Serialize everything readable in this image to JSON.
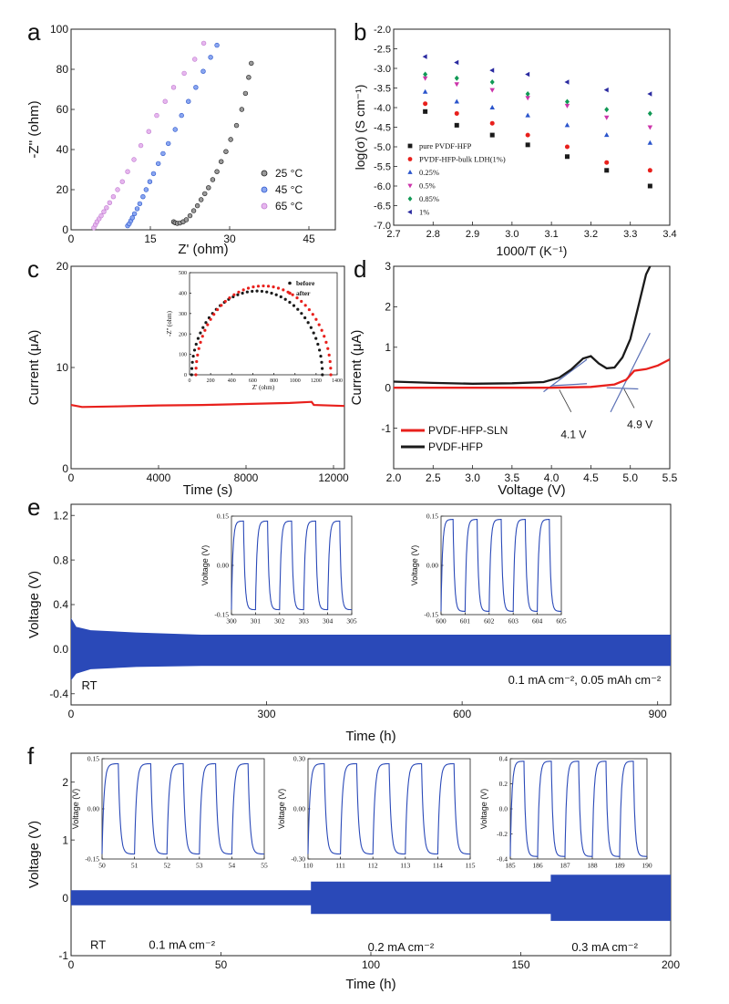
{
  "colors": {
    "black": "#1a1a1a",
    "blue": "#2b55cc",
    "red": "#e8201c",
    "green": "#119955",
    "purple": "#2a2aa0",
    "lilac": "#c07ad0",
    "magenta": "#cc33aa",
    "fill_blue": "#2a49b8",
    "guide": "#5a6fb5"
  },
  "chart_data": [
    {
      "id": "a",
      "type": "scatter",
      "panel_letter": "a",
      "xlabel": "Z' (ohm)",
      "ylabel": "-Z'' (ohm)",
      "xlim": [
        0,
        50
      ],
      "ylim": [
        0,
        100
      ],
      "xticks": [
        0,
        15,
        30,
        45
      ],
      "yticks": [
        0,
        20,
        40,
        60,
        80,
        100
      ],
      "series": [
        {
          "name": "25 °C",
          "color": "#1a1a1a",
          "fill": "#9a9a9a",
          "points": [
            [
              19.4,
              4
            ],
            [
              19.7,
              3.5
            ],
            [
              20.1,
              3.2
            ],
            [
              20.6,
              3.4
            ],
            [
              21.2,
              4
            ],
            [
              21.8,
              5
            ],
            [
              22.5,
              7
            ],
            [
              23.2,
              9.5
            ],
            [
              23.9,
              12
            ],
            [
              24.6,
              15
            ],
            [
              25.3,
              18
            ],
            [
              26,
              21
            ],
            [
              26.8,
              25
            ],
            [
              27.6,
              29
            ],
            [
              28.4,
              34
            ],
            [
              29.3,
              39
            ],
            [
              30.2,
              45
            ],
            [
              31.3,
              52
            ],
            [
              32.3,
              60
            ],
            [
              33,
              68
            ],
            [
              33.6,
              76
            ],
            [
              34.1,
              83
            ]
          ]
        },
        {
          "name": "45 °C",
          "color": "#2b55cc",
          "fill": "#8aa6f0",
          "points": [
            [
              10.7,
              2
            ],
            [
              11,
              3
            ],
            [
              11.3,
              4.5
            ],
            [
              11.6,
              6
            ],
            [
              12,
              8
            ],
            [
              12.5,
              10.5
            ],
            [
              13,
              13
            ],
            [
              13.6,
              16.5
            ],
            [
              14.2,
              20
            ],
            [
              14.9,
              24
            ],
            [
              15.6,
              28
            ],
            [
              16.5,
              33
            ],
            [
              17.4,
              38
            ],
            [
              18.4,
              43
            ],
            [
              19.7,
              50
            ],
            [
              20.9,
              57
            ],
            [
              22.2,
              64
            ],
            [
              23.6,
              71
            ],
            [
              25,
              79
            ],
            [
              26.4,
              86
            ],
            [
              27.6,
              92
            ]
          ]
        },
        {
          "name": "65 °C",
          "color": "#c07ad0",
          "fill": "#e6b7ee",
          "points": [
            [
              4.3,
              1
            ],
            [
              4.6,
              2.5
            ],
            [
              4.9,
              4
            ],
            [
              5.3,
              5.5
            ],
            [
              5.7,
              7
            ],
            [
              6.2,
              9
            ],
            [
              6.7,
              11
            ],
            [
              7.3,
              13.5
            ],
            [
              8,
              16.5
            ],
            [
              8.8,
              20
            ],
            [
              9.7,
              24
            ],
            [
              10.7,
              29
            ],
            [
              11.9,
              35
            ],
            [
              13.2,
              42
            ],
            [
              14.7,
              49
            ],
            [
              16.2,
              57
            ],
            [
              17.8,
              64
            ],
            [
              19.4,
              71
            ],
            [
              21.4,
              78
            ],
            [
              23.4,
              85
            ],
            [
              25.1,
              93
            ]
          ]
        }
      ]
    },
    {
      "id": "b",
      "type": "scatter",
      "panel_letter": "b",
      "xlabel": "1000/T (K⁻¹)",
      "ylabel": "log(σ) (S cm⁻¹)",
      "xlim": [
        2.7,
        3.4
      ],
      "ylim": [
        -7.0,
        -2.0
      ],
      "xticks": [
        2.7,
        2.8,
        2.9,
        3.0,
        3.1,
        3.2,
        3.3,
        3.4
      ],
      "yticks": [
        -2.0,
        -2.5,
        -3.0,
        -3.5,
        -4.0,
        -4.5,
        -5.0,
        -5.5,
        -6.0,
        -6.5,
        -7.0
      ],
      "x": [
        2.78,
        2.86,
        2.95,
        3.04,
        3.14,
        3.24,
        3.35
      ],
      "series": [
        {
          "name": "pure PVDF-HFP",
          "color": "#1a1a1a",
          "marker": "square",
          "values": [
            -4.1,
            -4.45,
            -4.7,
            -4.95,
            -5.25,
            -5.6,
            -6.0
          ]
        },
        {
          "name": "PVDF-HFP-bulk LDH(1%)",
          "color": "#e8201c",
          "marker": "circle",
          "values": [
            -3.9,
            -4.15,
            -4.4,
            -4.7,
            -5.0,
            -5.4,
            -5.6
          ]
        },
        {
          "name": "0.25%",
          "color": "#2b55cc",
          "marker": "triangle-up",
          "values": [
            -3.6,
            -3.85,
            -4.0,
            -4.2,
            -4.45,
            -4.7,
            -4.9
          ]
        },
        {
          "name": "0.5%",
          "color": "#cc33aa",
          "marker": "triangle-down",
          "values": [
            -3.25,
            -3.4,
            -3.55,
            -3.75,
            -3.95,
            -4.25,
            -4.5
          ]
        },
        {
          "name": "0.85%",
          "color": "#119955",
          "marker": "diamond",
          "values": [
            -3.15,
            -3.25,
            -3.35,
            -3.65,
            -3.85,
            -4.05,
            -4.15
          ]
        },
        {
          "name": "1%",
          "color": "#2a2aa0",
          "marker": "triangle-left",
          "values": [
            -2.7,
            -2.85,
            -3.05,
            -3.15,
            -3.35,
            -3.55,
            -3.65
          ]
        }
      ]
    },
    {
      "id": "c",
      "type": "line",
      "panel_letter": "c",
      "xlabel": "Time (s)",
      "ylabel": "Current (μA)",
      "xlim": [
        0,
        12500
      ],
      "ylim": [
        0,
        20
      ],
      "xticks": [
        0,
        4000,
        8000,
        12000
      ],
      "yticks": [
        0,
        10,
        20
      ],
      "series": [
        {
          "name": "current",
          "color": "#e8201c",
          "x": [
            0,
            500,
            2000,
            4000,
            6000,
            8000,
            10000,
            11000,
            11100,
            12500
          ],
          "y": [
            6.3,
            6.1,
            6.15,
            6.25,
            6.3,
            6.4,
            6.5,
            6.6,
            6.3,
            6.2
          ]
        }
      ],
      "inset": {
        "type": "scatter",
        "xlabel": "Z' (ohm)",
        "ylabel": "-Z'' (ohm)",
        "xlim": [
          0,
          1400
        ],
        "ylim": [
          0,
          500
        ],
        "xticks": [
          0,
          200,
          400,
          600,
          800,
          1000,
          1200,
          1400
        ],
        "yticks": [
          0,
          100,
          200,
          300,
          400,
          500
        ],
        "series": [
          {
            "name": "before",
            "color": "#1a1a1a",
            "center": 640,
            "radius": 620,
            "peak": 410
          },
          {
            "name": "after",
            "color": "#e8201c",
            "center": 700,
            "radius": 640,
            "peak": 435
          }
        ]
      }
    },
    {
      "id": "d",
      "type": "line",
      "panel_letter": "d",
      "xlabel": "Voltage (V)",
      "ylabel": "Current (μA)",
      "xlim": [
        2.0,
        5.5
      ],
      "ylim": [
        -2,
        3
      ],
      "xticks": [
        2.0,
        2.5,
        3.0,
        3.5,
        4.0,
        4.5,
        5.0,
        5.5
      ],
      "yticks": [
        -1,
        0,
        1,
        2,
        3
      ],
      "series": [
        {
          "name": "PVDF-HFP-SLN",
          "color": "#e8201c",
          "x": [
            2.0,
            3.0,
            4.0,
            4.5,
            4.8,
            4.95,
            5.05,
            5.2,
            5.35,
            5.5
          ],
          "y": [
            0.0,
            0.0,
            0.0,
            0.02,
            0.08,
            0.2,
            0.42,
            0.46,
            0.55,
            0.7
          ]
        },
        {
          "name": "PVDF-HFP",
          "color": "#1a1a1a",
          "x": [
            2.0,
            2.5,
            3.0,
            3.5,
            3.9,
            4.1,
            4.25,
            4.4,
            4.5,
            4.6,
            4.7,
            4.8,
            4.9,
            5.0,
            5.1,
            5.2,
            5.25
          ],
          "y": [
            0.15,
            0.12,
            0.1,
            0.11,
            0.14,
            0.25,
            0.45,
            0.72,
            0.78,
            0.6,
            0.48,
            0.5,
            0.75,
            1.2,
            2.0,
            2.8,
            3.0
          ]
        }
      ],
      "annotations": [
        "4.1 V",
        "4.9 V"
      ]
    },
    {
      "id": "e",
      "type": "area",
      "panel_letter": "e",
      "xlabel": "Time (h)",
      "ylabel": "Voltage (V)",
      "xlim": [
        0,
        920
      ],
      "ylim": [
        -0.5,
        1.3
      ],
      "xticks": [
        0,
        300,
        600,
        900
      ],
      "yticks": [
        -0.4,
        0.0,
        0.4,
        0.8,
        1.2
      ],
      "envelope": {
        "x": [
          0,
          8,
          30,
          100,
          200,
          920
        ],
        "upper": [
          0.28,
          0.2,
          0.17,
          0.15,
          0.13,
          0.13
        ],
        "lower": [
          -0.28,
          -0.22,
          -0.18,
          -0.16,
          -0.15,
          -0.15
        ]
      },
      "annotations": [
        "RT",
        "0.1 mA cm⁻², 0.05 mAh cm⁻²"
      ],
      "insets": [
        {
          "xlim": [
            300,
            305
          ],
          "ylim": [
            -0.15,
            0.15
          ],
          "xticks": [
            300,
            301,
            302,
            303,
            304,
            305
          ],
          "yticks": [
            0.15,
            0.0,
            -0.15
          ],
          "ylabel": "Voltage (V)",
          "amplitude": 0.135
        },
        {
          "xlim": [
            600,
            605
          ],
          "ylim": [
            -0.15,
            0.15
          ],
          "xticks": [
            600,
            601,
            602,
            603,
            604,
            605
          ],
          "yticks": [
            0.15,
            0.0,
            -0.15
          ],
          "ylabel": "Voltage (V)",
          "amplitude": 0.14
        }
      ]
    },
    {
      "id": "f",
      "type": "area",
      "panel_letter": "f",
      "xlabel": "Time (h)",
      "ylabel": "Voltage (V)",
      "xlim": [
        0,
        200
      ],
      "ylim": [
        -1,
        2.5
      ],
      "xticks": [
        0,
        50,
        100,
        150,
        200
      ],
      "yticks": [
        -1,
        0,
        1,
        2
      ],
      "envelope": {
        "x": [
          0,
          80,
          80,
          160,
          160,
          200
        ],
        "upper": [
          0.13,
          0.13,
          0.28,
          0.28,
          0.4,
          0.4
        ],
        "lower": [
          -0.13,
          -0.13,
          -0.28,
          -0.28,
          -0.4,
          -0.4
        ]
      },
      "annotations": [
        "RT",
        "0.1 mA cm⁻²",
        "0.2 mA cm⁻²",
        "0.3 mA cm⁻²"
      ],
      "insets": [
        {
          "xlim": [
            50,
            55
          ],
          "ylim": [
            -0.15,
            0.15
          ],
          "xticks": [
            50,
            51,
            52,
            53,
            54,
            55
          ],
          "yticks": [
            0.15,
            0.0,
            -0.15
          ],
          "ylabel": "Voltage (V)",
          "amplitude": 0.135
        },
        {
          "xlim": [
            110,
            115
          ],
          "ylim": [
            -0.3,
            0.3
          ],
          "xticks": [
            110,
            111,
            112,
            113,
            114,
            115
          ],
          "yticks": [
            0.3,
            0.0,
            -0.3
          ],
          "ylabel": "Voltage (V)",
          "amplitude": 0.27
        },
        {
          "xlim": [
            185,
            190
          ],
          "ylim": [
            -0.4,
            0.4
          ],
          "xticks": [
            185,
            186,
            187,
            188,
            189,
            190
          ],
          "yticks": [
            0.4,
            0.2,
            0.0,
            -0.2,
            -0.4
          ],
          "ylabel": "Voltage (V)",
          "amplitude": 0.38
        }
      ]
    }
  ]
}
